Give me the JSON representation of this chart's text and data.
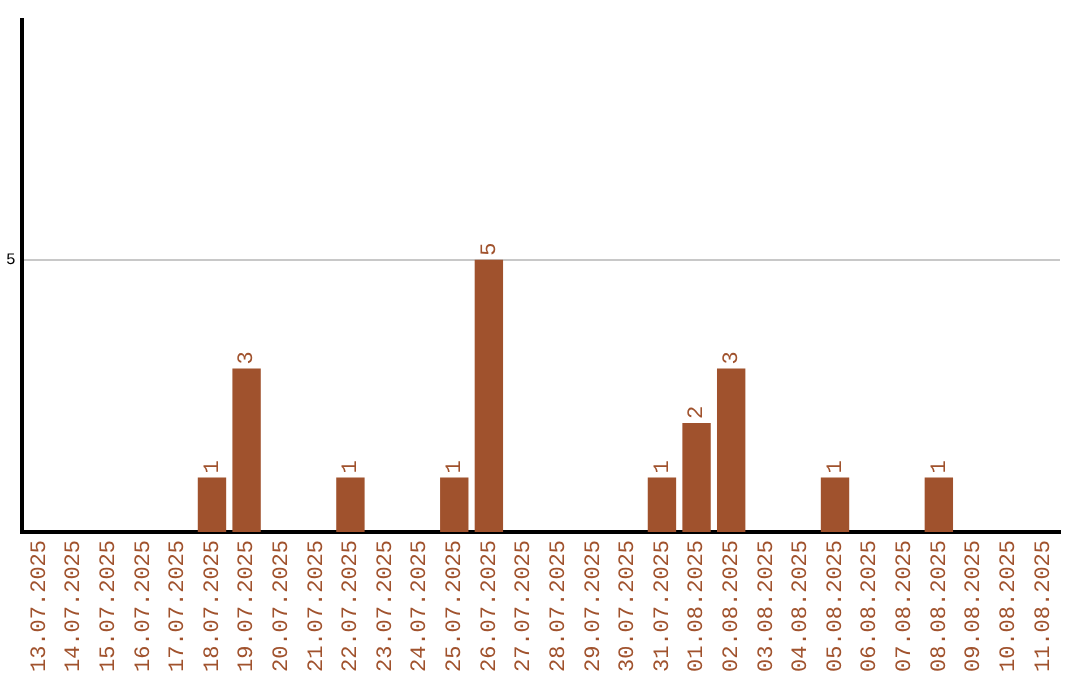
{
  "chart_data": {
    "type": "bar",
    "categories": [
      "13.07.2025",
      "14.07.2025",
      "15.07.2025",
      "16.07.2025",
      "17.07.2025",
      "18.07.2025",
      "19.07.2025",
      "20.07.2025",
      "21.07.2025",
      "22.07.2025",
      "23.07.2025",
      "24.07.2025",
      "25.07.2025",
      "26.07.2025",
      "27.07.2025",
      "28.07.2025",
      "29.07.2025",
      "30.07.2025",
      "31.07.2025",
      "01.08.2025",
      "02.08.2025",
      "03.08.2025",
      "04.08.2025",
      "05.08.2025",
      "06.08.2025",
      "07.08.2025",
      "08.08.2025",
      "09.08.2025",
      "10.08.2025",
      "11.08.2025"
    ],
    "values": [
      0,
      0,
      0,
      0,
      0,
      1,
      3,
      0,
      0,
      1,
      0,
      0,
      1,
      5,
      0,
      0,
      0,
      0,
      1,
      2,
      3,
      0,
      0,
      1,
      0,
      0,
      1,
      0,
      0,
      0
    ],
    "value_labels": [
      null,
      null,
      null,
      null,
      null,
      "1",
      "3",
      null,
      null,
      "1",
      null,
      null,
      "1",
      "5",
      null,
      null,
      null,
      null,
      "1",
      "2",
      "3",
      null,
      null,
      "1",
      null,
      null,
      "1",
      null,
      null,
      null
    ],
    "color": "#a0522d",
    "ylim": [
      0,
      9.4
    ],
    "yticks": [
      5
    ],
    "grid": "y"
  }
}
